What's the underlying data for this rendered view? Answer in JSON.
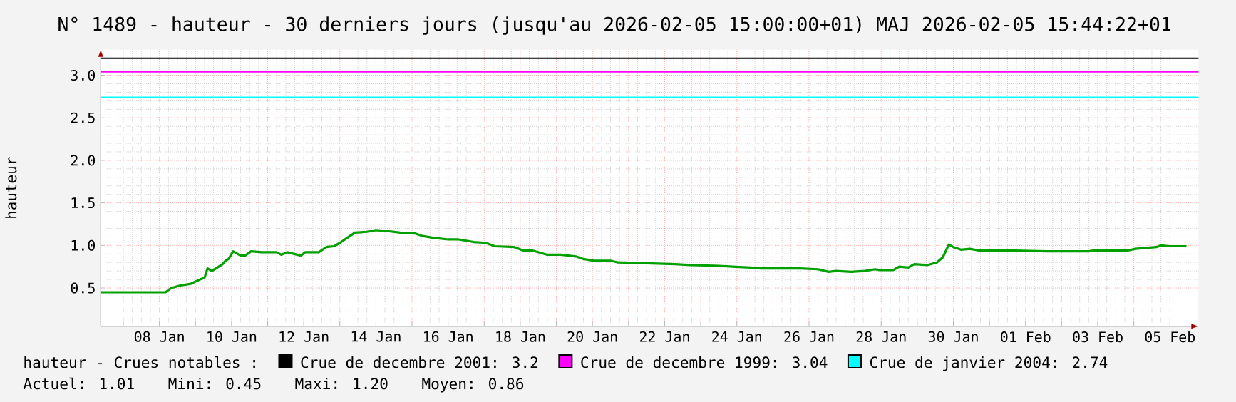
{
  "chart_data": {
    "type": "line",
    "title": "N° 1489 - hauteur - 30 derniers jours (jusqu'au 2026-02-05 15:00:00+01) MAJ 2026-02-05 15:44:22+01",
    "ylabel": "hauteur",
    "x": [
      "2026-01-06T09:00",
      "2026-01-08T04:00",
      "2026-01-08T08:00",
      "2026-01-08T14:00",
      "2026-01-08T21:00",
      "2026-01-09T03:00",
      "2026-01-09T06:00",
      "2026-01-09T08:00",
      "2026-01-09T11:00",
      "2026-01-09T18:00",
      "2026-01-09T20:00",
      "2026-01-09T22:00",
      "2026-01-10T01:00",
      "2026-01-10T06:00",
      "2026-01-10T09:00",
      "2026-01-10T13:00",
      "2026-01-10T20:00",
      "2026-01-11T06:00",
      "2026-01-11T09:00",
      "2026-01-11T13:00",
      "2026-01-11T22:00",
      "2026-01-12T01:00",
      "2026-01-12T10:00",
      "2026-01-12T15:00",
      "2026-01-12T20:00",
      "2026-01-13T00:00",
      "2026-01-13T05:00",
      "2026-01-13T10:00",
      "2026-01-13T18:00",
      "2026-01-14T00:00",
      "2026-01-14T07:00",
      "2026-01-14T16:00",
      "2026-01-15T02:00",
      "2026-01-15T07:00",
      "2026-01-15T14:00",
      "2026-01-16T00:00",
      "2026-01-16T07:00",
      "2026-01-16T17:00",
      "2026-01-17T01:00",
      "2026-01-17T07:00",
      "2026-01-17T20:00",
      "2026-01-18T02:00",
      "2026-01-18T08:00",
      "2026-01-18T18:00",
      "2026-01-19T03:00",
      "2026-01-19T13:00",
      "2026-01-19T18:00",
      "2026-01-20T01:00",
      "2026-01-20T12:00",
      "2026-01-20T17:00",
      "2026-01-21T12:00",
      "2026-01-22T07:00",
      "2026-01-22T17:00",
      "2026-01-23T12:00",
      "2026-01-23T21:00",
      "2026-01-24T09:00",
      "2026-01-24T16:00",
      "2026-01-25T18:00",
      "2026-01-26T06:00",
      "2026-01-26T13:00",
      "2026-01-26T18:00",
      "2026-01-27T04:00",
      "2026-01-27T13:00",
      "2026-01-27T20:00",
      "2026-01-27T23:00",
      "2026-01-28T08:00",
      "2026-01-28T12:00",
      "2026-01-28T18:00",
      "2026-01-28T22:00",
      "2026-01-29T07:00",
      "2026-01-29T13:00",
      "2026-01-29T17:00",
      "2026-01-29T21:00",
      "2026-01-30T00:00",
      "2026-01-30T05:00",
      "2026-01-30T11:00",
      "2026-01-30T17:00",
      "2026-01-31T00:00",
      "2026-01-31T16:00",
      "2026-02-01T14:00",
      "2026-02-02T18:00",
      "2026-02-02T21:00",
      "2026-02-03T20:00",
      "2026-02-04T01:00",
      "2026-02-04T15:00",
      "2026-02-04T18:00",
      "2026-02-05T00:00",
      "2026-02-05T11:00"
    ],
    "series": [
      {
        "color": "#00a000",
        "values": [
          0.45,
          0.45,
          0.5,
          0.53,
          0.55,
          0.6,
          0.62,
          0.73,
          0.7,
          0.78,
          0.82,
          0.84,
          0.93,
          0.88,
          0.88,
          0.93,
          0.92,
          0.92,
          0.89,
          0.92,
          0.88,
          0.92,
          0.92,
          0.98,
          0.99,
          1.03,
          1.09,
          1.15,
          1.16,
          1.18,
          1.17,
          1.15,
          1.14,
          1.11,
          1.09,
          1.07,
          1.07,
          1.04,
          1.03,
          0.99,
          0.98,
          0.94,
          0.94,
          0.89,
          0.89,
          0.87,
          0.84,
          0.82,
          0.82,
          0.8,
          0.79,
          0.78,
          0.77,
          0.76,
          0.75,
          0.74,
          0.73,
          0.73,
          0.72,
          0.69,
          0.7,
          0.69,
          0.7,
          0.72,
          0.71,
          0.71,
          0.75,
          0.74,
          0.78,
          0.77,
          0.8,
          0.86,
          1.01,
          0.98,
          0.95,
          0.96,
          0.94,
          0.94,
          0.94,
          0.93,
          0.93,
          0.94,
          0.94,
          0.96,
          0.98,
          1.0,
          0.99,
          0.99
        ]
      }
    ],
    "xlim": [
      "2026-01-06T09:00",
      "2026-02-05T19:00"
    ],
    "xticks": [
      {
        "value": "2026-01-07",
        "label": null
      },
      {
        "value": "2026-01-08",
        "label": "08 Jan"
      },
      {
        "value": "2026-01-09",
        "label": null
      },
      {
        "value": "2026-01-10",
        "label": "10 Jan"
      },
      {
        "value": "2026-01-11",
        "label": null
      },
      {
        "value": "2026-01-12",
        "label": "12 Jan"
      },
      {
        "value": "2026-01-13",
        "label": null
      },
      {
        "value": "2026-01-14",
        "label": "14 Jan"
      },
      {
        "value": "2026-01-15",
        "label": null
      },
      {
        "value": "2026-01-16",
        "label": "16 Jan"
      },
      {
        "value": "2026-01-17",
        "label": null
      },
      {
        "value": "2026-01-18",
        "label": "18 Jan"
      },
      {
        "value": "2026-01-19",
        "label": null
      },
      {
        "value": "2026-01-20",
        "label": "20 Jan"
      },
      {
        "value": "2026-01-21",
        "label": null
      },
      {
        "value": "2026-01-22",
        "label": "22 Jan"
      },
      {
        "value": "2026-01-23",
        "label": null
      },
      {
        "value": "2026-01-24",
        "label": "24 Jan"
      },
      {
        "value": "2026-01-25",
        "label": null
      },
      {
        "value": "2026-01-26",
        "label": "26 Jan"
      },
      {
        "value": "2026-01-27",
        "label": null
      },
      {
        "value": "2026-01-28",
        "label": "28 Jan"
      },
      {
        "value": "2026-01-29",
        "label": null
      },
      {
        "value": "2026-01-30",
        "label": "30 Jan"
      },
      {
        "value": "2026-01-31",
        "label": null
      },
      {
        "value": "2026-02-01",
        "label": "01 Feb"
      },
      {
        "value": "2026-02-02",
        "label": null
      },
      {
        "value": "2026-02-03",
        "label": "03 Feb"
      },
      {
        "value": "2026-02-04",
        "label": null
      },
      {
        "value": "2026-02-05",
        "label": "05 Feb"
      }
    ],
    "ylim": [
      0.05,
      3.3
    ],
    "yticks": [
      {
        "value": 0.5,
        "label": "0.5"
      },
      {
        "value": 1,
        "label": "1.0"
      },
      {
        "value": 1.5,
        "label": "1.5"
      },
      {
        "value": 2,
        "label": "2.0"
      },
      {
        "value": 2.5,
        "label": "2.5"
      },
      {
        "value": 3,
        "label": "3.0"
      }
    ],
    "ref_lines": [
      {
        "axis": "y",
        "value": 3.2,
        "label": "Crue de decembre 2001: 3.2",
        "color": "#000000"
      },
      {
        "axis": "y",
        "value": 3.04,
        "label": "Crue de decembre 1999: 3.04",
        "color": "#ff00ff"
      },
      {
        "axis": "y",
        "value": 2.74,
        "label": "Crue de janvier 2004: 2.74",
        "color": "#00ffff"
      }
    ],
    "annotations": [
      "hauteur - Crues notables :",
      "Actuel: 1.01",
      "Mini: 0.45",
      "Maxi: 1.20",
      "Moyen: 0.86"
    ],
    "grid": true,
    "legend": "bottom",
    "line_style": "solid"
  }
}
